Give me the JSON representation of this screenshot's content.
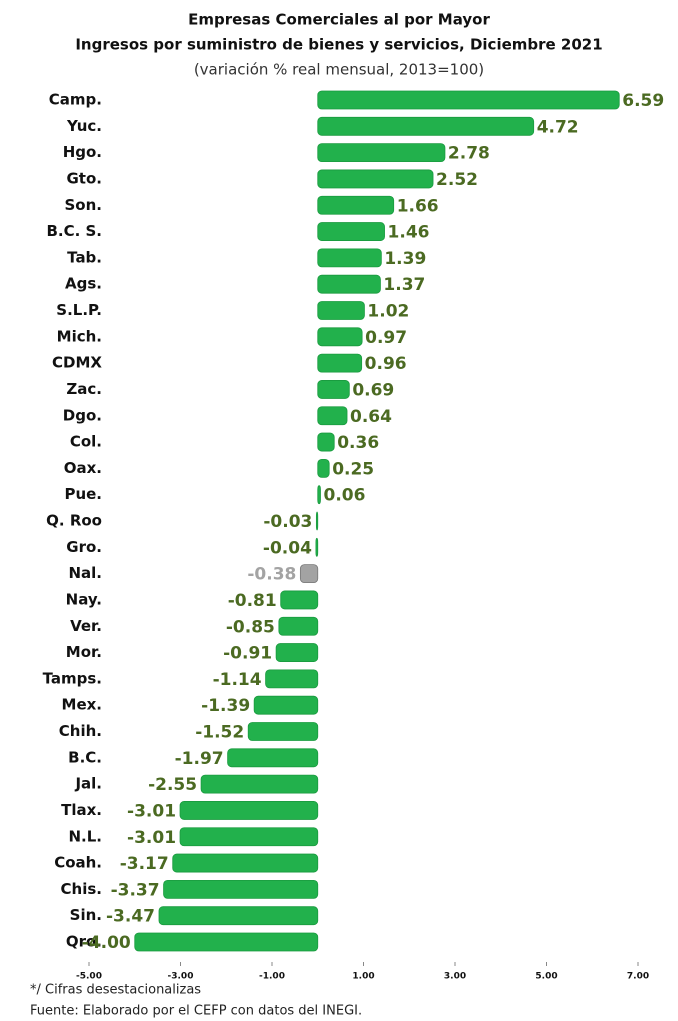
{
  "chart_data": {
    "type": "bar",
    "orientation": "horizontal",
    "title": "Empresas Comerciales al por Mayor",
    "subtitle": "Ingresos por suministro de bienes y servicios, Diciembre 2021",
    "subtitle2": "(variación % real mensual, 2013=100)",
    "categories": [
      "Camp.",
      "Yuc.",
      "Hgo.",
      "Gto.",
      "Son.",
      "B.C. S.",
      "Tab.",
      "Ags.",
      "S.L.P.",
      "Mich.",
      "CDMX",
      "Zac.",
      "Dgo.",
      "Col.",
      "Oax.",
      "Pue.",
      "Q. Roo",
      "Gro.",
      "Nal.",
      "Nay.",
      "Ver.",
      "Mor.",
      "Tamps.",
      "Mex.",
      "Chih.",
      "B.C.",
      "Jal.",
      "Tlax.",
      "N.L.",
      "Coah.",
      "Chis.",
      "Sin.",
      "Qro."
    ],
    "values": [
      6.59,
      4.72,
      2.78,
      2.52,
      1.66,
      1.46,
      1.39,
      1.37,
      1.02,
      0.97,
      0.96,
      0.69,
      0.64,
      0.36,
      0.25,
      0.06,
      -0.03,
      -0.04,
      -0.38,
      -0.81,
      -0.85,
      -0.91,
      -1.14,
      -1.39,
      -1.52,
      -1.97,
      -2.55,
      -3.01,
      -3.01,
      -3.17,
      -3.37,
      -3.47,
      -4.0
    ],
    "value_labels": [
      "6.59",
      "4.72",
      "2.78",
      "2.52",
      "1.66",
      "1.46",
      "1.39",
      "1.37",
      "1.02",
      "0.97",
      "0.96",
      "0.69",
      "0.64",
      "0.36",
      "0.25",
      "0.06",
      "-0.03",
      "-0.04",
      "-0.38",
      "-0.81",
      "-0.85",
      "-0.91",
      "-1.14",
      "-1.39",
      "-1.52",
      "-1.97",
      "-2.55",
      "-3.01",
      "-3.01",
      "-3.17",
      "-3.37",
      "-3.47",
      "-4.00"
    ],
    "color": "#22b14c",
    "highlight_color": "#a3a3a3",
    "highlight": "Nal.",
    "label_color": "#4b6a22",
    "xlim": [
      -5,
      7
    ],
    "xticks": [
      {
        "value": -5,
        "label": "-5.00"
      },
      {
        "value": -3,
        "label": "-3.00"
      },
      {
        "value": -1,
        "label": "-1.00"
      },
      {
        "value": 1,
        "label": "1.00"
      },
      {
        "value": 3,
        "label": "3.00"
      },
      {
        "value": 5,
        "label": "5.00"
      },
      {
        "value": 7,
        "label": "7.00"
      }
    ],
    "notes": [
      "*/ Cifras desestacionalizas",
      "Fuente: Elaborado por el CEFP con datos del INEGI."
    ]
  }
}
